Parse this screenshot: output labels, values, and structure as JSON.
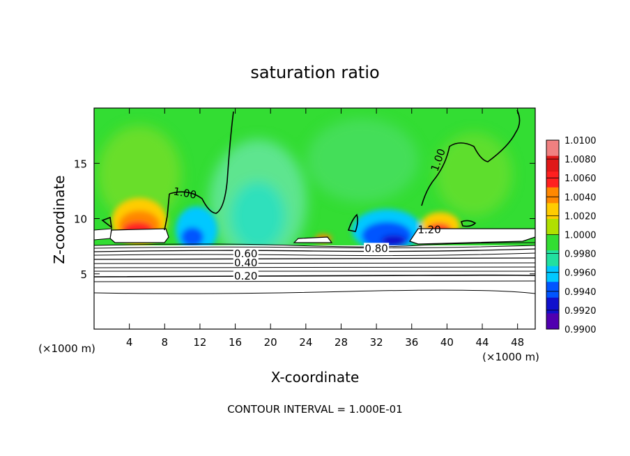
{
  "chart_data": {
    "type": "heatmap",
    "title": "saturation ratio",
    "xlabel": "X-coordinate",
    "ylabel": "Z-coordinate",
    "x_unit_label": "(×1000 m)",
    "y_unit_label": "(×1000 m)",
    "xlim": [
      0,
      50
    ],
    "ylim": [
      0,
      20
    ],
    "x_ticks": [
      4,
      8,
      12,
      16,
      20,
      24,
      28,
      32,
      36,
      40,
      44,
      48
    ],
    "y_ticks": [
      5,
      10,
      15
    ],
    "footer": "CONTOUR INTERVAL = 1.000E-01",
    "colorbar": {
      "labels": [
        "1.0100",
        "1.0080",
        "1.0060",
        "1.0040",
        "1.0020",
        "1.0000",
        "0.9980",
        "0.9960",
        "0.9940",
        "0.9920",
        "0.9900"
      ],
      "colors": [
        "#f08080",
        "#e01818",
        "#ff2020",
        "#ff8800",
        "#ffcc00",
        "#b0e000",
        "#33dd33",
        "#22e0a0",
        "#00c8ff",
        "#0055ff",
        "#1010cc",
        "#5000b0"
      ]
    },
    "contour_labels": [
      {
        "text": "1.00",
        "x": 10.3,
        "z": 12.3,
        "rotate": 10
      },
      {
        "text": "1.00",
        "x": 39.0,
        "z": 15.3,
        "rotate": -70
      },
      {
        "text": "1.20",
        "x": 38.0,
        "z": 9.0,
        "rotate": 0
      },
      {
        "text": "0.80",
        "x": 32.0,
        "z": 7.3,
        "rotate": 0
      },
      {
        "text": "0.60",
        "x": 17.2,
        "z": 6.8,
        "rotate": 0
      },
      {
        "text": "0.40",
        "x": 17.2,
        "z": 6.0,
        "rotate": 0
      },
      {
        "text": "0.20",
        "x": 17.2,
        "z": 4.8,
        "rotate": 0
      }
    ],
    "background_value": 1.0,
    "features": [
      {
        "kind": "max",
        "x": 5.5,
        "z": 10.0,
        "value": 1.008
      },
      {
        "kind": "max",
        "x": 40.0,
        "z": 9.5,
        "value": 1.006
      },
      {
        "kind": "max",
        "x": 26.0,
        "z": 8.4,
        "value": 1.004
      },
      {
        "kind": "min",
        "x": 11.5,
        "z": 9.3,
        "value": 0.993
      },
      {
        "kind": "min",
        "x": 33.5,
        "z": 9.2,
        "value": 0.992
      },
      {
        "kind": "min",
        "x": 18.0,
        "z": 13.5,
        "value": 0.997
      }
    ]
  }
}
